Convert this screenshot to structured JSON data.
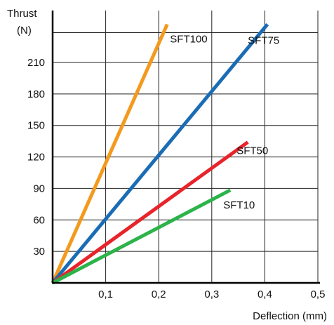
{
  "chart_data": {
    "type": "line",
    "ylabel_line1": "Thrust",
    "ylabel_line2": "(N)",
    "xlabel": "Deflection (mm)",
    "xlim": [
      0,
      0.5
    ],
    "ylim": [
      0,
      240
    ],
    "x_ticks": [
      0.1,
      0.2,
      0.3,
      0.4,
      0.5
    ],
    "x_tick_labels": [
      "0,1",
      "0,2",
      "0,3",
      "0,4",
      "0,5"
    ],
    "y_ticks": [
      30,
      60,
      90,
      120,
      150,
      180,
      210
    ],
    "y_tick_labels": [
      "30",
      "60",
      "90",
      "120",
      "150",
      "180",
      "210"
    ],
    "grid": true,
    "series": [
      {
        "name": "SFT100",
        "color": "#f39a1e",
        "x": [
          0,
          0.216
        ],
        "y": [
          0,
          248
        ]
      },
      {
        "name": "SFT75",
        "color": "#1a6cb5",
        "x": [
          0,
          0.405
        ],
        "y": [
          0,
          248
        ]
      },
      {
        "name": "SFT50",
        "color": "#e8242b",
        "x": [
          0,
          0.368
        ],
        "y": [
          0,
          135
        ]
      },
      {
        "name": "SFT10",
        "color": "#2cb34a",
        "x": [
          0,
          0.335
        ],
        "y": [
          0,
          89
        ]
      }
    ]
  }
}
